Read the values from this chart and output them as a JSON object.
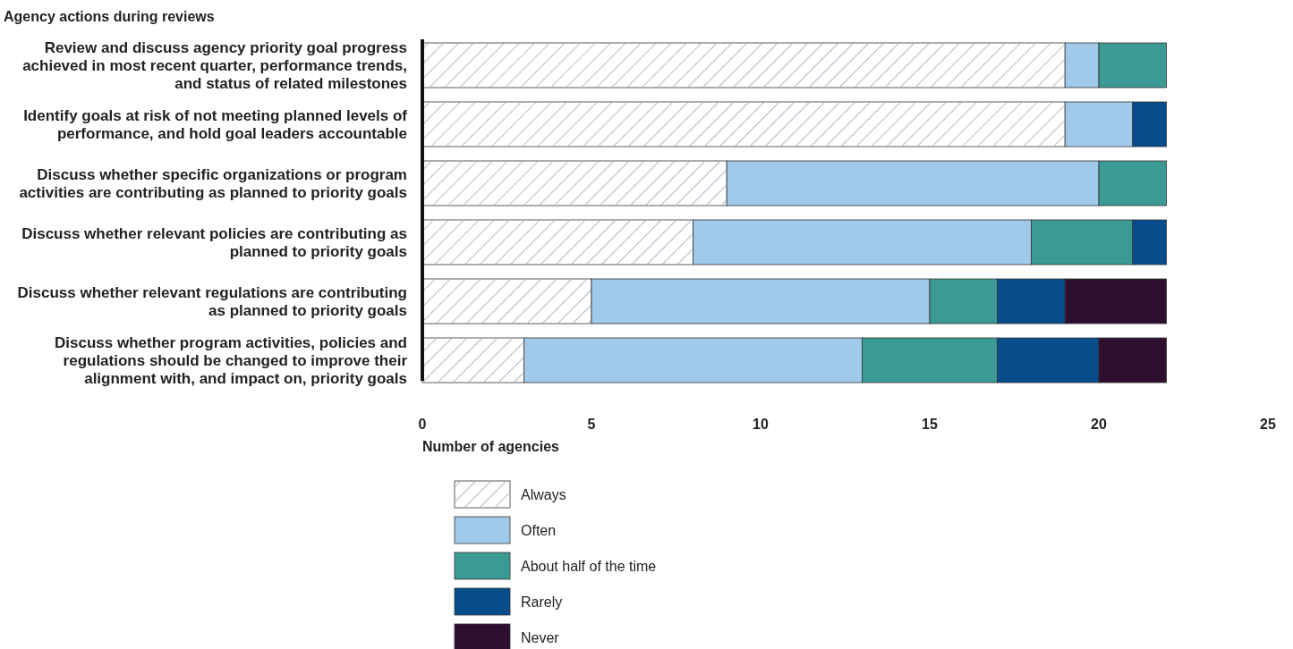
{
  "chart_data": {
    "type": "bar",
    "orientation": "horizontal",
    "stacked": true,
    "title": "Agency actions during reviews",
    "xlabel": "Number of agencies",
    "categories": [
      "Review and discuss agency priority goal progress achieved in most recent quarter, performance trends, and status of related milestones",
      "Identify goals at risk of not meeting planned levels of performance, and hold goal leaders accountable",
      "Discuss whether specific organizations or program activities are contributing as planned to priority goals",
      "Discuss whether relevant policies are contributing as planned to priority goals",
      "Discuss whether relevant regulations are contributing as planned to priority goals",
      "Discuss whether program activities, policies and regulations should be changed to improve their alignment with, and impact on, priority goals"
    ],
    "series": [
      {
        "name": "Always",
        "color": "#ffffff",
        "values": [
          19,
          19,
          9,
          8,
          5,
          3
        ]
      },
      {
        "name": "Often",
        "color": "#a0c9ea",
        "values": [
          1,
          2,
          11,
          10,
          10,
          10
        ]
      },
      {
        "name": "About half of the time",
        "color": "#3c9a94",
        "values": [
          2,
          0,
          2,
          3,
          2,
          4
        ]
      },
      {
        "name": "Rarely",
        "color": "#074d8c",
        "values": [
          0,
          1,
          0,
          1,
          2,
          3
        ]
      },
      {
        "name": "Never",
        "color": "#2e0f2f",
        "values": [
          0,
          0,
          0,
          0,
          3,
          2
        ]
      }
    ],
    "xlim": [
      0,
      25
    ],
    "xticks": [
      0,
      5,
      10,
      15,
      20,
      25
    ],
    "legend": "bottom"
  }
}
